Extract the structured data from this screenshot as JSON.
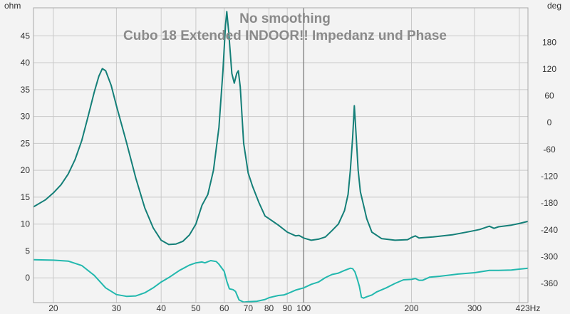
{
  "chart_data": {
    "type": "line",
    "title": "No smoothing",
    "subtitle": "Cubo 18 Extended INDOOR!! Impedanz und Phase",
    "y_left_unit": "ohm",
    "y_right_unit": "deg",
    "x_unit_label": "423Hz",
    "x_scale": "log",
    "x_range": [
      17.6,
      423
    ],
    "y_left_range": [
      -4.6,
      50.2
    ],
    "y_right_range": [
      -403,
      257
    ],
    "y_left_ticks": [
      "45",
      "40",
      "35",
      "30",
      "25",
      "20",
      "15",
      "10",
      "5",
      "0"
    ],
    "y_left_tick_values": [
      45,
      40,
      35,
      30,
      25,
      20,
      15,
      10,
      5,
      0
    ],
    "y_right_ticks": [
      "180",
      "120",
      "60",
      "0",
      "-60",
      "-120",
      "-180",
      "-240",
      "-300",
      "-360"
    ],
    "y_right_tick_values": [
      180,
      120,
      60,
      0,
      -60,
      -120,
      -180,
      -240,
      -300,
      -360
    ],
    "x_ticks": [
      "20",
      "30",
      "40",
      "50",
      "60",
      "70",
      "80",
      "90",
      "100",
      "200",
      "300"
    ],
    "x_tick_values": [
      20,
      30,
      40,
      50,
      60,
      70,
      80,
      90,
      100,
      200,
      300
    ],
    "x_minor_ticks": [
      400
    ],
    "cursor_x": 100,
    "grid": true,
    "colors": {
      "background": "#f3f3f3",
      "grid": "#c9c9c9",
      "impedance": "#147f78",
      "phase": "#22b8ae",
      "title": "#8a8a8a",
      "cursor": "#777777",
      "tick_text": "#333333"
    },
    "series": [
      {
        "axis": "left",
        "points": [
          [
            17.6,
            13.2
          ],
          [
            19,
            14.5
          ],
          [
            20,
            15.8
          ],
          [
            21,
            17.3
          ],
          [
            22,
            19.3
          ],
          [
            23,
            22.0
          ],
          [
            24,
            25.5
          ],
          [
            25,
            30.0
          ],
          [
            26,
            34.5
          ],
          [
            26.8,
            37.5
          ],
          [
            27.4,
            38.9
          ],
          [
            28,
            38.5
          ],
          [
            29,
            35.8
          ],
          [
            30,
            32.0
          ],
          [
            32,
            25.2
          ],
          [
            34,
            18.5
          ],
          [
            36,
            13.0
          ],
          [
            38,
            9.3
          ],
          [
            40,
            7.0
          ],
          [
            42,
            6.2
          ],
          [
            44,
            6.3
          ],
          [
            46,
            6.8
          ],
          [
            48,
            8.0
          ],
          [
            50,
            10.0
          ],
          [
            52,
            13.5
          ],
          [
            54,
            15.5
          ],
          [
            56,
            20.0
          ],
          [
            58,
            28.0
          ],
          [
            59.5,
            38.5
          ],
          [
            60.5,
            47.0
          ],
          [
            61,
            49.5
          ],
          [
            61.7,
            46.0
          ],
          [
            63,
            38.0
          ],
          [
            64,
            36.2
          ],
          [
            65,
            38.0
          ],
          [
            65.7,
            38.5
          ],
          [
            66.5,
            35.5
          ],
          [
            68,
            25.0
          ],
          [
            70,
            19.5
          ],
          [
            72,
            17.0
          ],
          [
            75,
            14.0
          ],
          [
            78,
            11.5
          ],
          [
            80,
            11.0
          ],
          [
            85,
            9.8
          ],
          [
            90,
            8.5
          ],
          [
            95,
            7.8
          ],
          [
            97,
            7.9
          ],
          [
            100,
            7.4
          ],
          [
            105,
            7.0
          ],
          [
            110,
            7.2
          ],
          [
            115,
            7.6
          ],
          [
            120,
            8.8
          ],
          [
            125,
            10.0
          ],
          [
            130,
            12.5
          ],
          [
            133,
            15.5
          ],
          [
            135,
            20.0
          ],
          [
            137,
            26.0
          ],
          [
            138.5,
            32.0
          ],
          [
            140,
            27.0
          ],
          [
            142,
            20.0
          ],
          [
            144,
            16.0
          ],
          [
            147,
            13.5
          ],
          [
            150,
            11.0
          ],
          [
            155,
            8.5
          ],
          [
            165,
            7.3
          ],
          [
            180,
            7.0
          ],
          [
            195,
            7.1
          ],
          [
            200,
            7.5
          ],
          [
            205,
            7.8
          ],
          [
            210,
            7.4
          ],
          [
            230,
            7.6
          ],
          [
            260,
            8.0
          ],
          [
            290,
            8.6
          ],
          [
            310,
            9.0
          ],
          [
            330,
            9.6
          ],
          [
            340,
            9.2
          ],
          [
            350,
            9.5
          ],
          [
            380,
            9.8
          ],
          [
            400,
            10.1
          ],
          [
            423,
            10.5
          ]
        ]
      },
      {
        "axis": "right",
        "points": [
          [
            17.6,
            -307
          ],
          [
            20,
            -308
          ],
          [
            22,
            -310
          ],
          [
            24,
            -320
          ],
          [
            26,
            -342
          ],
          [
            28,
            -370
          ],
          [
            30,
            -385
          ],
          [
            32,
            -389
          ],
          [
            34,
            -388
          ],
          [
            36,
            -381
          ],
          [
            38,
            -370
          ],
          [
            40,
            -357
          ],
          [
            42,
            -347
          ],
          [
            45,
            -331
          ],
          [
            48,
            -319
          ],
          [
            50,
            -314
          ],
          [
            52,
            -312
          ],
          [
            53,
            -314
          ],
          [
            55,
            -309
          ],
          [
            57,
            -311
          ],
          [
            58,
            -317
          ],
          [
            60,
            -333
          ],
          [
            61,
            -355
          ],
          [
            62,
            -372
          ],
          [
            63.5,
            -374
          ],
          [
            64.5,
            -378
          ],
          [
            66,
            -397
          ],
          [
            68,
            -402
          ],
          [
            70,
            -401
          ],
          [
            74,
            -400
          ],
          [
            78,
            -396
          ],
          [
            80,
            -392
          ],
          [
            85,
            -387
          ],
          [
            88,
            -386
          ],
          [
            90,
            -383
          ],
          [
            95,
            -375
          ],
          [
            100,
            -370
          ],
          [
            105,
            -362
          ],
          [
            110,
            -357
          ],
          [
            115,
            -347
          ],
          [
            120,
            -340
          ],
          [
            125,
            -337
          ],
          [
            130,
            -331
          ],
          [
            135,
            -326
          ],
          [
            137,
            -327
          ],
          [
            139,
            -334
          ],
          [
            141,
            -349
          ],
          [
            143,
            -366
          ],
          [
            145,
            -391
          ],
          [
            147,
            -393
          ],
          [
            150,
            -390
          ],
          [
            155,
            -386
          ],
          [
            160,
            -379
          ],
          [
            170,
            -370
          ],
          [
            180,
            -360
          ],
          [
            190,
            -352
          ],
          [
            200,
            -351
          ],
          [
            205,
            -349
          ],
          [
            210,
            -353
          ],
          [
            215,
            -353
          ],
          [
            225,
            -346
          ],
          [
            240,
            -344
          ],
          [
            270,
            -339
          ],
          [
            300,
            -336
          ],
          [
            330,
            -331
          ],
          [
            350,
            -331
          ],
          [
            380,
            -330
          ],
          [
            400,
            -328
          ],
          [
            423,
            -326
          ]
        ]
      }
    ]
  }
}
